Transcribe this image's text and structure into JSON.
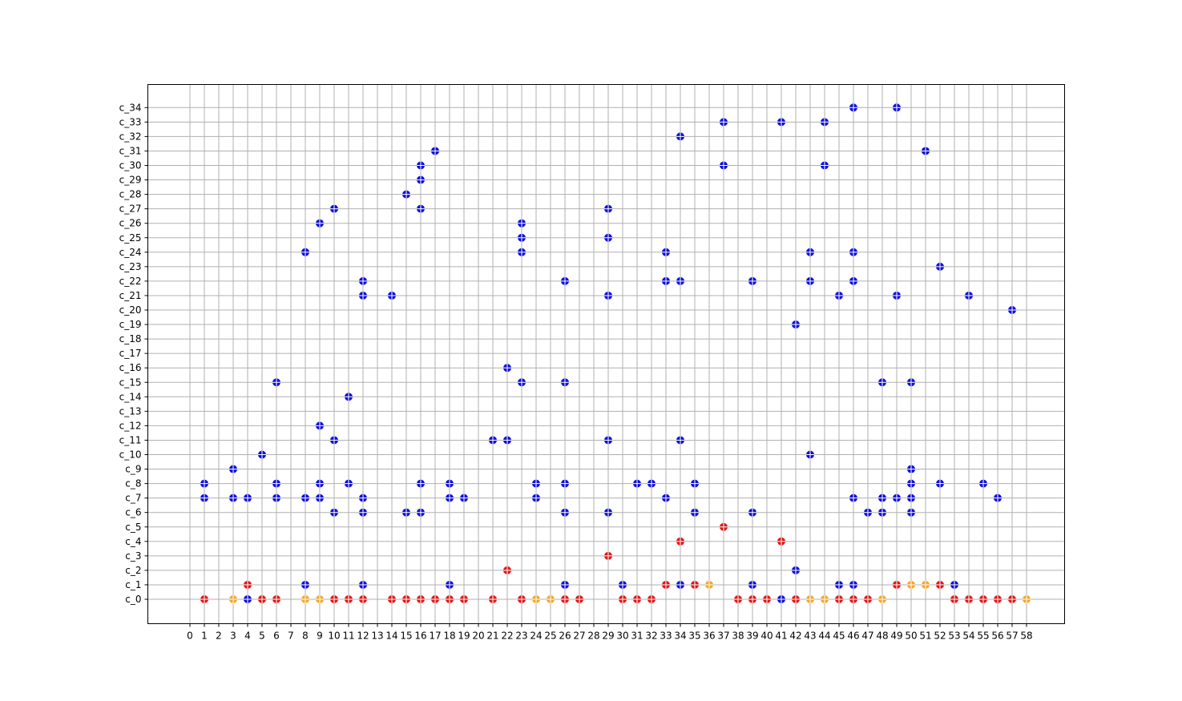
{
  "chart_data": {
    "type": "scatter",
    "title": "",
    "xlabel": "",
    "ylabel": "",
    "grid": true,
    "x_ticks": [
      "0",
      "1",
      "2",
      "3",
      "4",
      "5",
      "6",
      "7",
      "8",
      "9",
      "10",
      "11",
      "12",
      "13",
      "14",
      "15",
      "16",
      "17",
      "18",
      "19",
      "20",
      "21",
      "22",
      "23",
      "24",
      "25",
      "26",
      "27",
      "28",
      "29",
      "30",
      "31",
      "32",
      "33",
      "34",
      "35",
      "36",
      "37",
      "38",
      "39",
      "40",
      "41",
      "42",
      "43",
      "44",
      "45",
      "46",
      "47",
      "48",
      "49",
      "50",
      "51",
      "52",
      "53",
      "54",
      "55",
      "56",
      "57",
      "58"
    ],
    "y_ticks": [
      "c_0",
      "c_1",
      "c_2",
      "c_3",
      "c_4",
      "c_5",
      "c_6",
      "c_7",
      "c_8",
      "c_9",
      "c_10",
      "c_11",
      "c_12",
      "c_13",
      "c_14",
      "c_15",
      "c_16",
      "c_17",
      "c_18",
      "c_19",
      "c_20",
      "c_21",
      "c_22",
      "c_23",
      "c_24",
      "c_25",
      "c_26",
      "c_27",
      "c_28",
      "c_29",
      "c_30",
      "c_31",
      "c_32",
      "c_33",
      "c_34"
    ],
    "colors": {
      "blue": "#1010d8",
      "red": "#e01818",
      "orange": "#f0a830",
      "grid": "#b0b0b0"
    },
    "series": [
      {
        "color": "blue",
        "points": [
          [
            1,
            7
          ],
          [
            1,
            8
          ],
          [
            3,
            7
          ],
          [
            3,
            9
          ],
          [
            4,
            7
          ],
          [
            4,
            0
          ],
          [
            5,
            10
          ],
          [
            6,
            7
          ],
          [
            6,
            8
          ],
          [
            6,
            15
          ],
          [
            8,
            1
          ],
          [
            8,
            7
          ],
          [
            8,
            24
          ],
          [
            9,
            7
          ],
          [
            9,
            8
          ],
          [
            9,
            12
          ],
          [
            9,
            26
          ],
          [
            10,
            6
          ],
          [
            10,
            11
          ],
          [
            10,
            27
          ],
          [
            11,
            8
          ],
          [
            11,
            14
          ],
          [
            12,
            1
          ],
          [
            12,
            6
          ],
          [
            12,
            7
          ],
          [
            12,
            21
          ],
          [
            12,
            22
          ],
          [
            14,
            21
          ],
          [
            15,
            6
          ],
          [
            15,
            28
          ],
          [
            16,
            6
          ],
          [
            16,
            8
          ],
          [
            16,
            27
          ],
          [
            16,
            29
          ],
          [
            16,
            30
          ],
          [
            17,
            31
          ],
          [
            18,
            1
          ],
          [
            18,
            7
          ],
          [
            18,
            8
          ],
          [
            19,
            7
          ],
          [
            21,
            11
          ],
          [
            22,
            11
          ],
          [
            22,
            16
          ],
          [
            23,
            15
          ],
          [
            23,
            24
          ],
          [
            23,
            25
          ],
          [
            23,
            26
          ],
          [
            24,
            7
          ],
          [
            24,
            8
          ],
          [
            26,
            1
          ],
          [
            26,
            6
          ],
          [
            26,
            8
          ],
          [
            26,
            15
          ],
          [
            26,
            22
          ],
          [
            29,
            6
          ],
          [
            29,
            11
          ],
          [
            29,
            21
          ],
          [
            29,
            25
          ],
          [
            29,
            27
          ],
          [
            30,
            1
          ],
          [
            31,
            8
          ],
          [
            32,
            8
          ],
          [
            33,
            7
          ],
          [
            33,
            22
          ],
          [
            33,
            24
          ],
          [
            34,
            1
          ],
          [
            34,
            11
          ],
          [
            34,
            22
          ],
          [
            34,
            32
          ],
          [
            35,
            6
          ],
          [
            35,
            8
          ],
          [
            37,
            30
          ],
          [
            37,
            33
          ],
          [
            39,
            1
          ],
          [
            39,
            6
          ],
          [
            39,
            22
          ],
          [
            41,
            0
          ],
          [
            41,
            33
          ],
          [
            42,
            2
          ],
          [
            42,
            19
          ],
          [
            43,
            10
          ],
          [
            43,
            22
          ],
          [
            43,
            24
          ],
          [
            44,
            30
          ],
          [
            44,
            33
          ],
          [
            45,
            1
          ],
          [
            45,
            21
          ],
          [
            46,
            1
          ],
          [
            46,
            7
          ],
          [
            46,
            22
          ],
          [
            46,
            24
          ],
          [
            46,
            34
          ],
          [
            47,
            6
          ],
          [
            48,
            6
          ],
          [
            48,
            7
          ],
          [
            48,
            15
          ],
          [
            49,
            7
          ],
          [
            49,
            21
          ],
          [
            49,
            34
          ],
          [
            50,
            6
          ],
          [
            50,
            7
          ],
          [
            50,
            8
          ],
          [
            50,
            9
          ],
          [
            50,
            15
          ],
          [
            51,
            31
          ],
          [
            52,
            8
          ],
          [
            52,
            23
          ],
          [
            53,
            1
          ],
          [
            54,
            21
          ],
          [
            55,
            8
          ],
          [
            56,
            7
          ],
          [
            57,
            20
          ]
        ]
      },
      {
        "color": "red",
        "points": [
          [
            1,
            0
          ],
          [
            4,
            1
          ],
          [
            5,
            0
          ],
          [
            6,
            0
          ],
          [
            10,
            0
          ],
          [
            11,
            0
          ],
          [
            12,
            0
          ],
          [
            14,
            0
          ],
          [
            15,
            0
          ],
          [
            16,
            0
          ],
          [
            17,
            0
          ],
          [
            18,
            0
          ],
          [
            19,
            0
          ],
          [
            21,
            0
          ],
          [
            22,
            2
          ],
          [
            23,
            0
          ],
          [
            26,
            0
          ],
          [
            27,
            0
          ],
          [
            29,
            3
          ],
          [
            30,
            0
          ],
          [
            31,
            0
          ],
          [
            32,
            0
          ],
          [
            33,
            1
          ],
          [
            34,
            4
          ],
          [
            35,
            1
          ],
          [
            37,
            5
          ],
          [
            38,
            0
          ],
          [
            39,
            0
          ],
          [
            40,
            0
          ],
          [
            41,
            4
          ],
          [
            42,
            0
          ],
          [
            45,
            0
          ],
          [
            46,
            0
          ],
          [
            47,
            0
          ],
          [
            49,
            1
          ],
          [
            52,
            1
          ],
          [
            53,
            0
          ],
          [
            54,
            0
          ],
          [
            55,
            0
          ],
          [
            56,
            0
          ],
          [
            57,
            0
          ]
        ]
      },
      {
        "color": "orange",
        "points": [
          [
            3,
            0
          ],
          [
            8,
            0
          ],
          [
            9,
            0
          ],
          [
            24,
            0
          ],
          [
            25,
            0
          ],
          [
            36,
            1
          ],
          [
            43,
            0
          ],
          [
            44,
            0
          ],
          [
            48,
            0
          ],
          [
            50,
            1
          ],
          [
            51,
            1
          ],
          [
            58,
            0
          ]
        ]
      }
    ]
  }
}
